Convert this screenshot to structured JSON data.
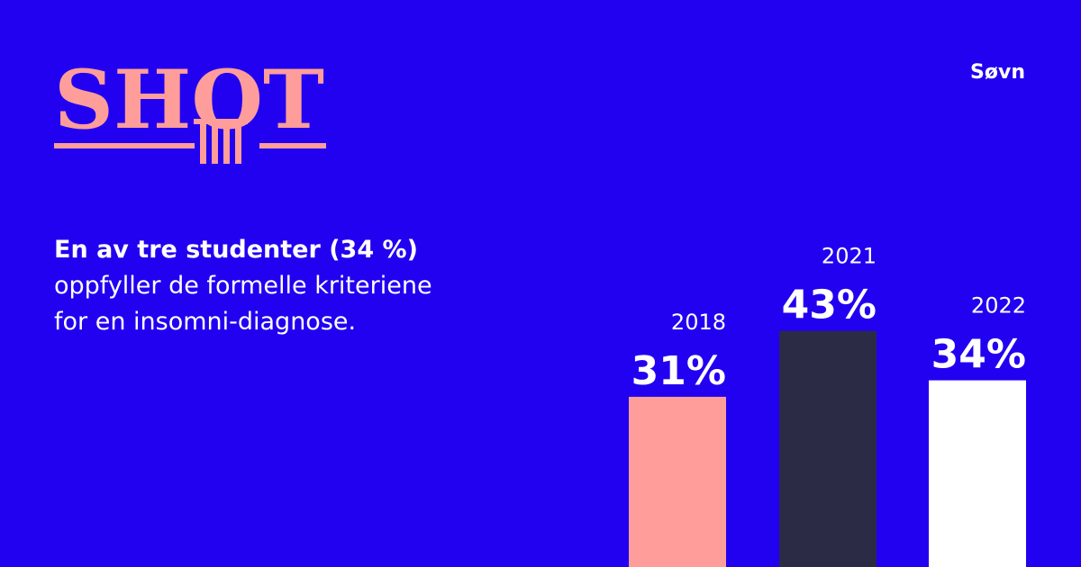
{
  "brand": {
    "logo_text": "SHOT",
    "logo_color": "#FF9D9A"
  },
  "topic": "Søvn",
  "headline": {
    "bold": "En av tre studenter (34 %)",
    "line2": "oppfyller de formelle kriteriene",
    "line3": "for en insomni-diagnose."
  },
  "colors": {
    "background": "#2200F0",
    "text": "#FFFFFF"
  },
  "chart_data": {
    "type": "bar",
    "title": "",
    "xlabel": "",
    "ylabel": "",
    "categories": [
      "2018",
      "2021",
      "2022"
    ],
    "values": [
      31,
      43,
      34
    ],
    "value_labels": [
      "31%",
      "43%",
      "34%"
    ],
    "bar_colors": [
      "#FF9D9A",
      "#2B2B45",
      "#FFFFFF"
    ],
    "ylim": [
      0,
      100
    ],
    "grid": false,
    "legend": "none"
  }
}
